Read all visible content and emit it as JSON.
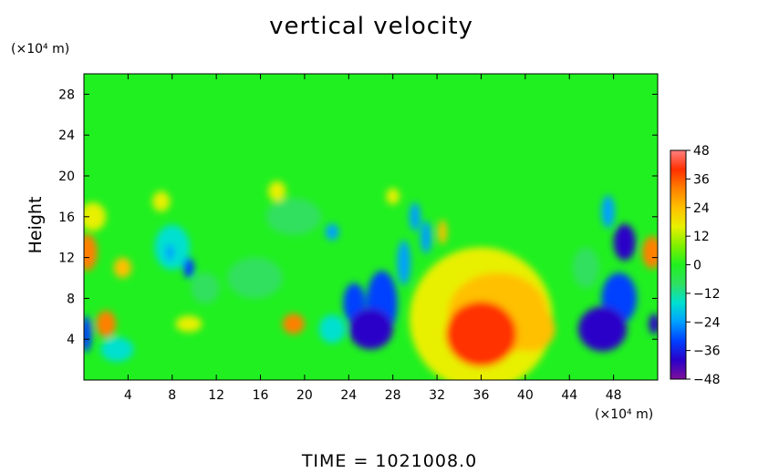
{
  "chart_data": {
    "type": "heatmap",
    "title": "vertical velocity",
    "ylabel": "Height",
    "yunit": "(×10⁴ m)",
    "xunit": "(×10⁴ m)",
    "footer": "TIME = 1021008.0",
    "xlim": [
      0,
      52
    ],
    "ylim": [
      0,
      30
    ],
    "x_ticks": [
      "4",
      "8",
      "12",
      "16",
      "20",
      "24",
      "28",
      "32",
      "36",
      "40",
      "44",
      "48"
    ],
    "x_tick_values": [
      4,
      8,
      12,
      16,
      20,
      24,
      28,
      32,
      36,
      40,
      44,
      48
    ],
    "y_ticks": [
      "4",
      "8",
      "12",
      "16",
      "20",
      "24",
      "28"
    ],
    "y_tick_values": [
      4,
      8,
      12,
      16,
      20,
      24,
      28
    ],
    "colorbar": {
      "labels": [
        "48",
        "36",
        "24",
        "12",
        "0",
        "−12",
        "−24",
        "−36",
        "−48"
      ],
      "values": [
        48,
        36,
        24,
        12,
        0,
        -12,
        -24,
        -36,
        -48
      ],
      "range": [
        -48,
        48
      ],
      "colors": [
        "#7f0f9b",
        "#2a00c8",
        "#0040ff",
        "#00a0ff",
        "#00e0d0",
        "#30e060",
        "#20f020",
        "#80f000",
        "#e8f000",
        "#ffc000",
        "#ff8000",
        "#ff3000",
        "#ff8080"
      ]
    },
    "background_value": 2,
    "features": [
      {
        "x": 36,
        "y": 4.5,
        "rx": 3.2,
        "ry": 3.2,
        "value": 42
      },
      {
        "x": 37.5,
        "y": 6.5,
        "rx": 4.5,
        "ry": 4.0,
        "value": 24
      },
      {
        "x": 40.5,
        "y": 5,
        "rx": 2.2,
        "ry": 2.2,
        "value": 26
      },
      {
        "x": 36,
        "y": 6,
        "rx": 6.5,
        "ry": 7.0,
        "value": 12
      },
      {
        "x": 2,
        "y": 5.5,
        "rx": 0.9,
        "ry": 1.3,
        "value": 34
      },
      {
        "x": 0.3,
        "y": 12.5,
        "rx": 0.9,
        "ry": 1.8,
        "value": 28
      },
      {
        "x": 3.5,
        "y": 11,
        "rx": 0.8,
        "ry": 1.0,
        "value": 26
      },
      {
        "x": 19,
        "y": 5.5,
        "rx": 1.0,
        "ry": 1.0,
        "value": 30
      },
      {
        "x": 51.5,
        "y": 12.5,
        "rx": 0.9,
        "ry": 1.6,
        "value": 34
      },
      {
        "x": 32.5,
        "y": 14.5,
        "rx": 0.4,
        "ry": 1.2,
        "value": 22
      },
      {
        "x": 9.5,
        "y": 5.5,
        "rx": 1.2,
        "ry": 0.8,
        "value": 16
      },
      {
        "x": 0.2,
        "y": 4.5,
        "rx": 0.5,
        "ry": 1.8,
        "value": -34
      },
      {
        "x": 26,
        "y": 5,
        "rx": 2.0,
        "ry": 2.0,
        "value": -38
      },
      {
        "x": 27,
        "y": 7.5,
        "rx": 1.4,
        "ry": 3.2,
        "value": -32
      },
      {
        "x": 24.5,
        "y": 7.5,
        "rx": 1.0,
        "ry": 2.0,
        "value": -30
      },
      {
        "x": 22.5,
        "y": 5,
        "rx": 1.2,
        "ry": 1.4,
        "value": -20
      },
      {
        "x": 29,
        "y": 11.5,
        "rx": 0.6,
        "ry": 2.2,
        "value": -26
      },
      {
        "x": 31,
        "y": 14,
        "rx": 0.5,
        "ry": 1.6,
        "value": -28
      },
      {
        "x": 30,
        "y": 16,
        "rx": 0.5,
        "ry": 1.4,
        "value": -22
      },
      {
        "x": 47,
        "y": 5,
        "rx": 2.2,
        "ry": 2.2,
        "value": -40
      },
      {
        "x": 48.5,
        "y": 8,
        "rx": 1.6,
        "ry": 2.5,
        "value": -32
      },
      {
        "x": 49,
        "y": 13.5,
        "rx": 1.0,
        "ry": 1.8,
        "value": -38
      },
      {
        "x": 47.5,
        "y": 16.5,
        "rx": 0.6,
        "ry": 1.6,
        "value": -26
      },
      {
        "x": 51.7,
        "y": 5.5,
        "rx": 0.5,
        "ry": 1.0,
        "value": -44
      },
      {
        "x": 8,
        "y": 13,
        "rx": 1.6,
        "ry": 2.2,
        "value": -14
      },
      {
        "x": 9.5,
        "y": 11,
        "rx": 0.5,
        "ry": 1.0,
        "value": -30
      },
      {
        "x": 7.8,
        "y": 12.5,
        "rx": 0.4,
        "ry": 0.8,
        "value": -28
      },
      {
        "x": 3,
        "y": 3,
        "rx": 1.5,
        "ry": 1.2,
        "value": -14
      },
      {
        "x": 11,
        "y": 9,
        "rx": 1.3,
        "ry": 1.5,
        "value": -10
      },
      {
        "x": 22.5,
        "y": 14.5,
        "rx": 0.6,
        "ry": 0.8,
        "value": -22
      },
      {
        "x": 19,
        "y": 16,
        "rx": 2.5,
        "ry": 1.8,
        "value": -8
      },
      {
        "x": 15.5,
        "y": 10,
        "rx": 2.5,
        "ry": 2.0,
        "value": -6
      },
      {
        "x": 7,
        "y": 17.5,
        "rx": 0.8,
        "ry": 1.0,
        "value": 18
      },
      {
        "x": 17.5,
        "y": 18.5,
        "rx": 0.8,
        "ry": 1.0,
        "value": 16
      },
      {
        "x": 28,
        "y": 18,
        "rx": 0.6,
        "ry": 0.8,
        "value": 16
      },
      {
        "x": 0.8,
        "y": 16,
        "rx": 1.2,
        "ry": 1.4,
        "value": 14
      },
      {
        "x": 45.5,
        "y": 11,
        "rx": 1.2,
        "ry": 2.0,
        "value": -12
      }
    ]
  }
}
